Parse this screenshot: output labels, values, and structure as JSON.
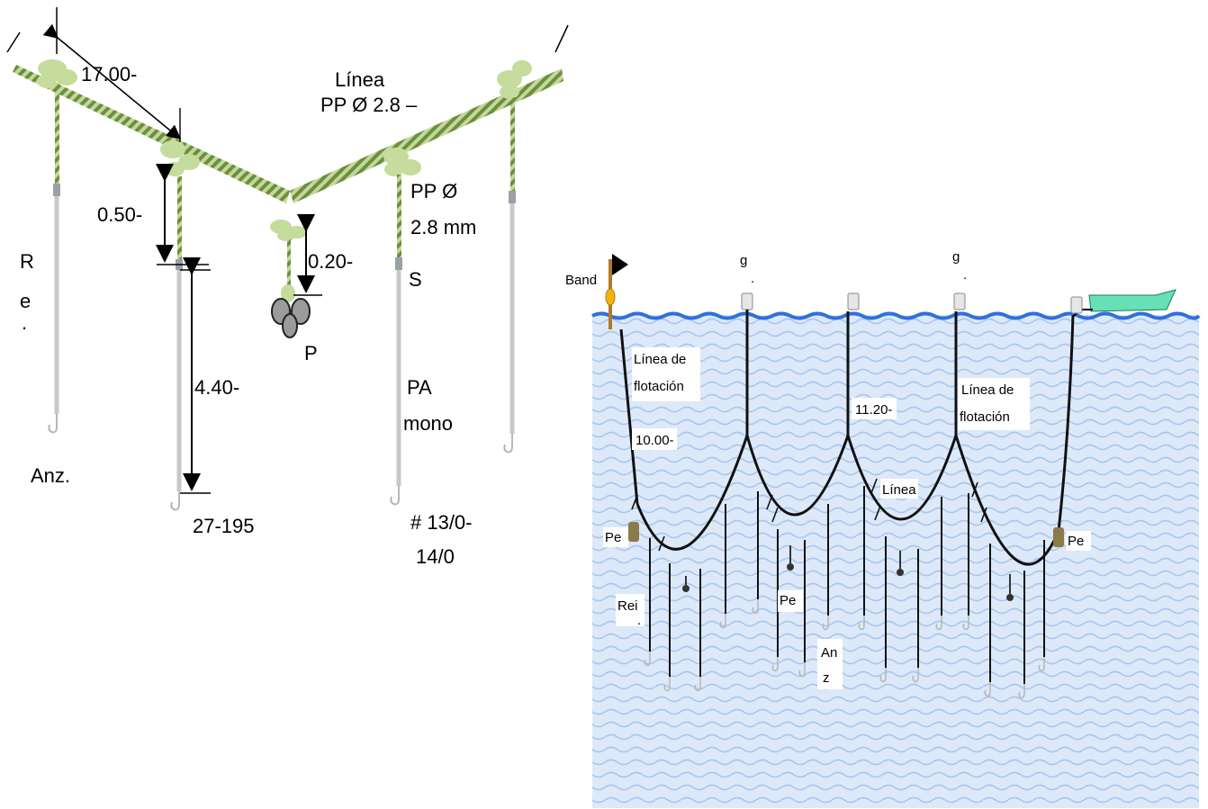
{
  "colors": {
    "rope_light": "#c3d8a0",
    "rope_dark": "#6e8f3a",
    "float": "#c6dc9c",
    "snood": "#c8c8c8",
    "hook": "#b0b0b0",
    "water": "#dde9f8",
    "water_wave": "#a9c7ee",
    "surface": "#2f6fe0",
    "boat": "#66e0b4",
    "flag_pole": "#b07a2a",
    "buoy": "#f2b400",
    "weight": "#8b7a4a"
  },
  "left_diagram": {
    "dim_17": "17.00-",
    "line_label_1": "Línea",
    "line_label_2": "PP Ø 2.8 –",
    "dim_050": "0.50-",
    "dim_020": "0.20-",
    "dim_440": "4.40-",
    "pp_label_1": "PP Ø",
    "pp_label_2": "2.8 mm",
    "s_label": "S",
    "r_label": "R",
    "e_label": "e",
    "dot_label": ".",
    "p_label": "P",
    "pa_label_1": "PA",
    "pa_label_2": "mono",
    "anz_label": "Anz.",
    "hooks_count": "27-195",
    "hook_size_1": "# 13/0-",
    "hook_size_2": "14/0"
  },
  "right_diagram": {
    "flag_label": "Band",
    "g_label_1": "g",
    "g_dot_1": ".",
    "g_label_2": "g",
    "g_dot_2": ".",
    "float_line_1a": "Línea de",
    "float_line_1b": "flotación",
    "dim_10": "10.00-",
    "dim_1120": "11.20-",
    "float_line_2a": "Línea de",
    "float_line_2b": "flotación",
    "linea_label": "Línea",
    "pe_left": "Pe",
    "pe_right": "Pe",
    "pe_mid": "Pe",
    "rei_label": "Rei",
    "rei_dot": ".",
    "an_label": "An",
    "z_label": "z"
  }
}
